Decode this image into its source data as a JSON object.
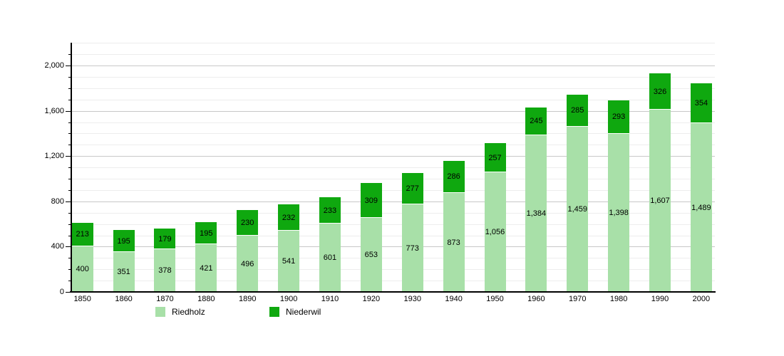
{
  "chart_data": {
    "type": "bar",
    "stacked": true,
    "title": "",
    "xlabel": "",
    "ylabel": "",
    "categories": [
      "1850",
      "1860",
      "1870",
      "1880",
      "1890",
      "1900",
      "1910",
      "1920",
      "1930",
      "1940",
      "1950",
      "1960",
      "1970",
      "1980",
      "1990",
      "2000"
    ],
    "series": [
      {
        "name": "Riedholz",
        "color": "#a8e0a8",
        "values": [
          400,
          351,
          378,
          421,
          496,
          541,
          601,
          653,
          773,
          873,
          1056,
          1384,
          1459,
          1398,
          1607,
          1489
        ]
      },
      {
        "name": "Niederwil",
        "color": "#0fa80f",
        "values": [
          213,
          195,
          179,
          195,
          230,
          232,
          233,
          309,
          277,
          286,
          257,
          245,
          285,
          293,
          326,
          354
        ]
      }
    ],
    "value_labels": true,
    "ylim": [
      0,
      2200
    ],
    "yticks": [
      0,
      400,
      800,
      1200,
      1600,
      2000
    ],
    "minor_grid_step": 100,
    "grid": true,
    "legend_position": "bottom"
  },
  "colors": {
    "background": "#ffffff",
    "axis": "#000000",
    "major_grid": "#c8c8c8",
    "minor_grid": "#ededed",
    "value_text": "#000000"
  }
}
